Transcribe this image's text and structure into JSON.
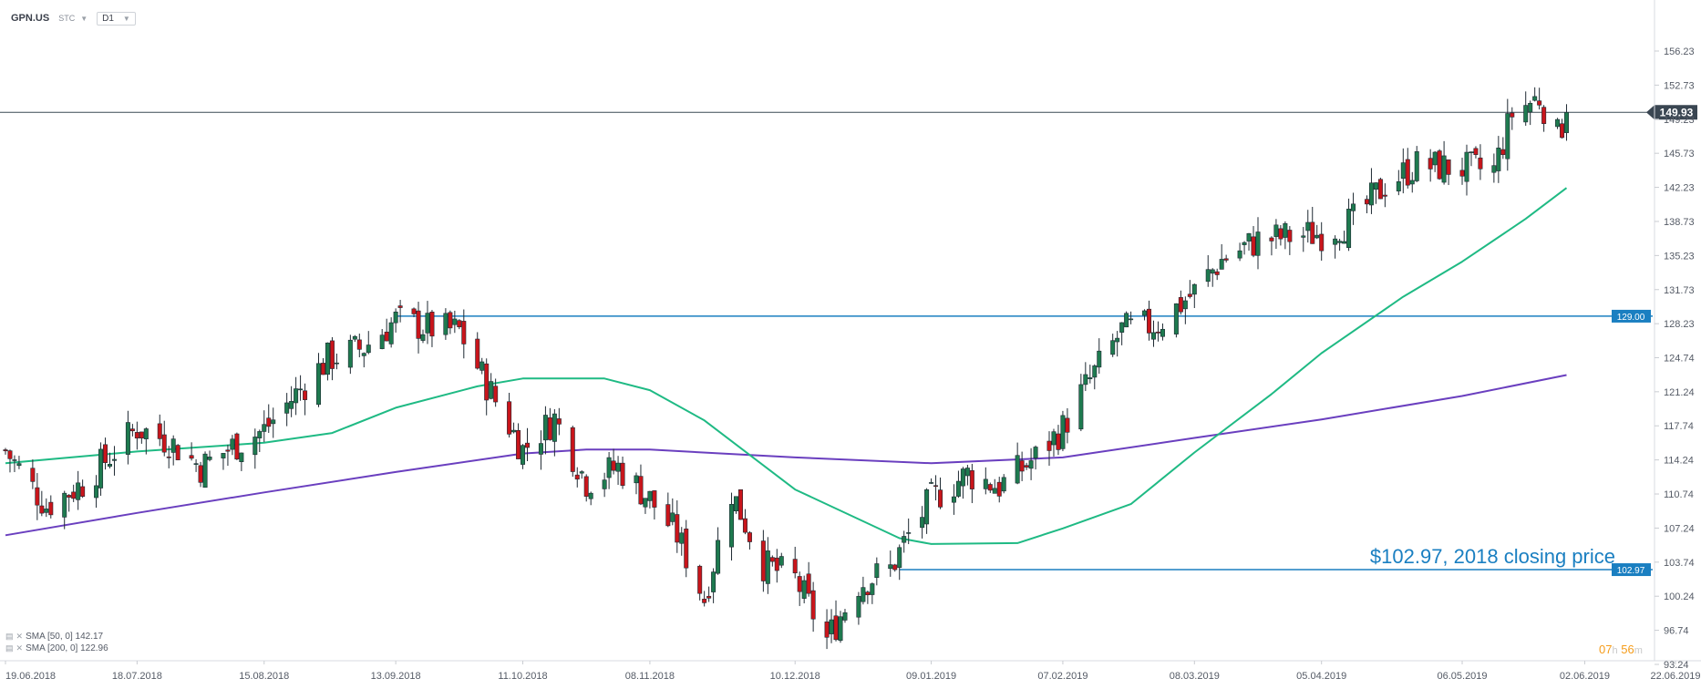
{
  "header": {
    "symbol": "GPN.US",
    "type": "STC",
    "timeframe": "D1"
  },
  "legend": {
    "sma50": "SMA [50, 0] 142.17",
    "sma200": "SMA [200, 0] 122.96"
  },
  "countdown": {
    "hours": "07",
    "h_unit": "h",
    "minutes": "56",
    "m_unit": "m"
  },
  "colors": {
    "up": "#1e7a4f",
    "down": "#c9151b",
    "sma50": "#1fba84",
    "sma200": "#6a3fbf",
    "level": "#1a7fc1",
    "price_line": "#3a4a55",
    "price_label_bg": "#3a4652"
  },
  "chart_data": {
    "type": "candlestick",
    "title": "",
    "y_ticks": [
      "156.23",
      "152.73",
      "149.23",
      "145.73",
      "142.23",
      "138.73",
      "135.23",
      "131.73",
      "128.23",
      "124.74",
      "121.24",
      "117.74",
      "114.24",
      "110.74",
      "107.24",
      "103.74",
      "100.24",
      "96.74",
      "93.24"
    ],
    "x_ticks": [
      "19.06.2018",
      "18.07.2018",
      "15.08.2018",
      "13.09.2018",
      "11.10.2018",
      "08.11.2018",
      "10.12.2018",
      "09.01.2019",
      "07.02.2019",
      "08.03.2019",
      "05.04.2019",
      "06.05.2019",
      "02.06.2019",
      "22.06.2019"
    ],
    "ylim": [
      93.24,
      159.0
    ],
    "current_price": {
      "value": 149.93,
      "label": "149.93"
    },
    "levels": [
      {
        "value": 129.0,
        "label": "129.00",
        "from": "13.09.2018"
      },
      {
        "value": 102.97,
        "label": "102.97",
        "from": "02.01.2019"
      }
    ],
    "annotation": "$102.97, 2018 closing price",
    "sma50_value": 142.17,
    "sma200_value": 122.96,
    "anchors": [
      [
        "19.06.2018",
        115.2
      ],
      [
        "28.06.2018",
        109.5
      ],
      [
        "06.07.2018",
        111.8
      ],
      [
        "18.07.2018",
        117.5
      ],
      [
        "25.07.2018",
        116.2
      ],
      [
        "01.08.2018",
        113.5
      ],
      [
        "08.08.2018",
        115.6
      ],
      [
        "15.08.2018",
        117.3
      ],
      [
        "22.08.2018",
        121.0
      ],
      [
        "29.08.2018",
        124.6
      ],
      [
        "06.09.2018",
        125.8
      ],
      [
        "13.09.2018",
        128.6
      ],
      [
        "20.09.2018",
        127.8
      ],
      [
        "27.09.2018",
        127.5
      ],
      [
        "03.10.2018",
        122.0
      ],
      [
        "11.10.2018",
        115.3
      ],
      [
        "18.10.2018",
        118.5
      ],
      [
        "25.10.2018",
        112.0
      ],
      [
        "01.11.2018",
        113.5
      ],
      [
        "08.11.2018",
        110.2
      ],
      [
        "14.11.2018",
        106.5
      ],
      [
        "20.11.2018",
        100.0
      ],
      [
        "26.11.2018",
        111.0
      ],
      [
        "03.12.2018",
        103.5
      ],
      [
        "10.12.2018",
        102.0
      ],
      [
        "17.12.2018",
        95.8
      ],
      [
        "24.12.2018",
        101.5
      ],
      [
        "31.12.2018",
        103.0
      ],
      [
        "04.01.2019",
        106.5
      ],
      [
        "09.01.2019",
        110.2
      ],
      [
        "17.01.2019",
        112.8
      ],
      [
        "24.01.2019",
        111.5
      ],
      [
        "01.02.2019",
        114.5
      ],
      [
        "07.02.2019",
        117.5
      ],
      [
        "11.02.2019",
        121.0
      ],
      [
        "20.02.2019",
        127.5
      ],
      [
        "28.02.2019",
        128.2
      ],
      [
        "08.03.2019",
        131.5
      ],
      [
        "14.03.2019",
        134.8
      ],
      [
        "22.03.2019",
        136.8
      ],
      [
        "29.03.2019",
        137.2
      ],
      [
        "05.04.2019",
        137.5
      ],
      [
        "12.04.2019",
        138.8
      ],
      [
        "19.04.2019",
        142.5
      ],
      [
        "26.04.2019",
        144.5
      ],
      [
        "06.05.2019",
        144.2
      ],
      [
        "13.05.2019",
        144.0
      ],
      [
        "17.05.2019",
        149.8
      ],
      [
        "23.05.2019",
        151.5
      ],
      [
        "27.05.2019",
        147.5
      ],
      [
        "29.05.2019",
        149.93
      ]
    ],
    "sma50_series": [
      [
        "19.06.2018",
        113.9
      ],
      [
        "18.07.2018",
        115.1
      ],
      [
        "15.08.2018",
        116.0
      ],
      [
        "30.08.2018",
        117.0
      ],
      [
        "13.09.2018",
        119.6
      ],
      [
        "01.10.2018",
        121.8
      ],
      [
        "11.10.2018",
        122.6
      ],
      [
        "29.10.2018",
        122.6
      ],
      [
        "08.11.2018",
        121.4
      ],
      [
        "20.11.2018",
        118.3
      ],
      [
        "10.12.2018",
        111.2
      ],
      [
        "02.01.2019",
        106.2
      ],
      [
        "09.01.2019",
        105.6
      ],
      [
        "28.01.2019",
        105.7
      ],
      [
        "07.02.2019",
        107.2
      ],
      [
        "22.02.2019",
        109.7
      ],
      [
        "08.03.2019",
        115.0
      ],
      [
        "25.03.2019",
        121.0
      ],
      [
        "05.04.2019",
        125.2
      ],
      [
        "23.04.2019",
        131.0
      ],
      [
        "06.05.2019",
        134.6
      ],
      [
        "20.05.2019",
        139.0
      ],
      [
        "29.05.2019",
        142.17
      ]
    ],
    "sma200_series": [
      [
        "19.06.2018",
        106.5
      ],
      [
        "18.07.2018",
        108.8
      ],
      [
        "15.08.2018",
        110.9
      ],
      [
        "13.09.2018",
        113.0
      ],
      [
        "11.10.2018",
        114.9
      ],
      [
        "25.10.2018",
        115.3
      ],
      [
        "08.11.2018",
        115.3
      ],
      [
        "10.12.2018",
        114.5
      ],
      [
        "09.01.2019",
        113.9
      ],
      [
        "07.02.2019",
        114.5
      ],
      [
        "08.03.2019",
        116.5
      ],
      [
        "05.04.2019",
        118.4
      ],
      [
        "06.05.2019",
        120.8
      ],
      [
        "29.05.2019",
        122.96
      ]
    ]
  }
}
